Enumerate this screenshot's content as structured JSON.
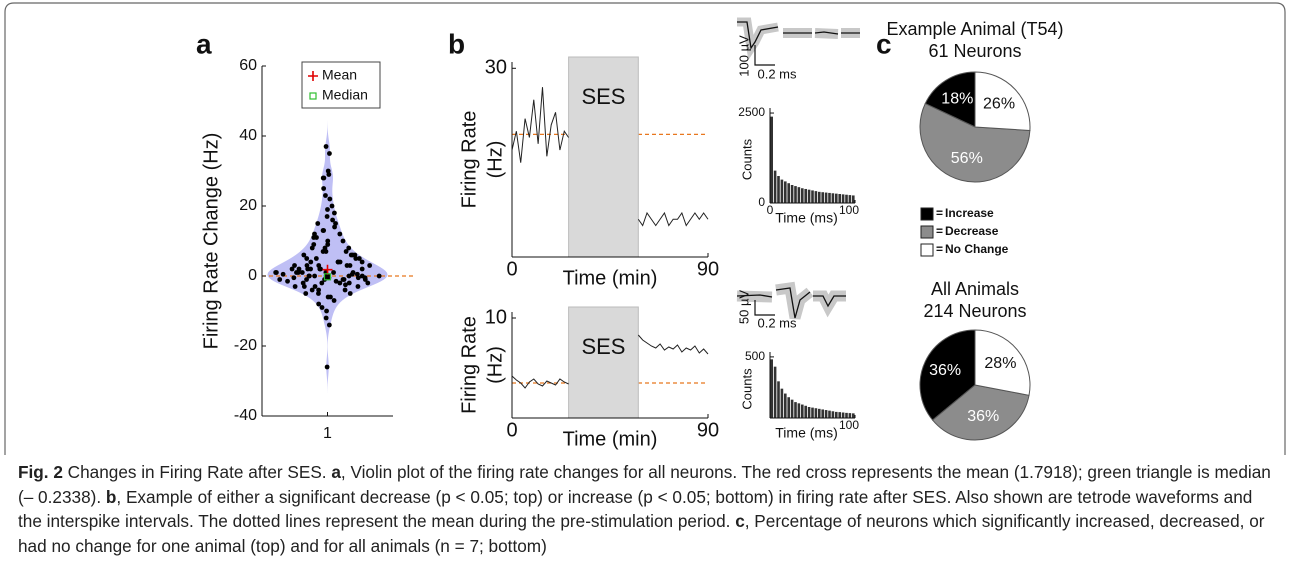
{
  "panel_labels": [
    "a",
    "b",
    "c"
  ],
  "chart_data": [
    {
      "type": "violin",
      "ylabel": "Firing Rate Change (Hz)",
      "categories": [
        "1"
      ],
      "ylim": [
        -40,
        60
      ],
      "yticks": [
        -40,
        -20,
        0,
        20,
        40,
        60
      ],
      "violin_color": "#a9a9f2",
      "reference_line": {
        "value": 0,
        "color": "#e8771e"
      },
      "points": [
        37,
        35,
        30,
        29,
        28,
        28,
        25,
        23,
        22,
        20,
        19,
        18,
        17,
        16,
        15,
        15,
        14,
        13,
        13,
        12,
        12,
        11,
        11,
        10,
        10,
        9,
        9,
        8,
        8,
        8,
        7,
        7,
        7,
        6,
        6,
        6,
        6,
        5,
        5,
        5,
        5,
        4,
        4,
        4,
        4,
        4,
        3,
        3,
        3,
        3,
        3,
        3,
        2,
        2,
        2,
        2,
        2,
        2,
        2,
        1,
        1,
        1,
        1,
        1,
        1,
        1,
        1,
        0.5,
        0.5,
        0.5,
        0,
        0,
        0,
        0,
        0,
        0,
        0,
        0,
        -0.5,
        -0.5,
        -0.5,
        -0.5,
        -1,
        -1,
        -1,
        -1,
        -1,
        -1,
        -1.5,
        -1.5,
        -2,
        -2,
        -2,
        -2,
        -2,
        -2.5,
        -3,
        -3,
        -3,
        -3,
        -4,
        -4,
        -4,
        -5,
        -5,
        -5,
        -6,
        -6,
        -7,
        -8,
        -9,
        -10,
        -12,
        -14,
        -26
      ],
      "series": [
        {
          "name": "Mean",
          "color": "#e00000",
          "values": [
            1.7918
          ]
        },
        {
          "name": "Median",
          "color": "#2fbf2f",
          "values": [
            -0.2338
          ]
        }
      ]
    },
    {
      "type": "line",
      "ylabel": [
        "Firing Rate",
        "(Hz)"
      ],
      "xlabel": "Time (min)",
      "xlim": [
        0,
        90
      ],
      "xticks": [
        0,
        90
      ],
      "ylim": [
        0,
        31
      ],
      "yticks": [
        30
      ],
      "color": "#222222",
      "shade": {
        "x": [
          26,
          58
        ],
        "label": "SES",
        "color": "#d9d9d9"
      },
      "reference_line": {
        "value": 19.5,
        "color": "#e8771e"
      },
      "x": [
        0,
        2,
        4,
        6,
        8,
        10,
        12,
        14,
        16,
        18,
        20,
        22,
        24,
        26,
        28,
        30,
        32,
        34,
        36,
        38,
        40,
        42,
        44,
        46,
        48,
        50,
        52,
        54,
        56,
        58,
        60,
        62,
        64,
        66,
        68,
        70,
        72,
        74,
        76,
        78,
        80,
        82,
        84,
        86,
        88,
        90
      ],
      "values": [
        17,
        20,
        15,
        22,
        19,
        25,
        18,
        27,
        16,
        21,
        23,
        17,
        20,
        19,
        null,
        null,
        null,
        null,
        null,
        null,
        null,
        null,
        null,
        null,
        null,
        null,
        null,
        null,
        null,
        6,
        5,
        7,
        6,
        5,
        6,
        7,
        5,
        6,
        6,
        7,
        5,
        6,
        7,
        6,
        7,
        6
      ]
    },
    {
      "type": "histogram",
      "ylabel": "Counts",
      "xlabel": "Time (ms)",
      "xlim": [
        0,
        100
      ],
      "xticks": [
        0,
        100
      ],
      "ylim": [
        0,
        2640
      ],
      "yticks": [
        0,
        2500
      ],
      "color": "#333333",
      "bins": [
        0,
        4,
        8,
        12,
        16,
        20,
        24,
        28,
        32,
        36,
        40,
        44,
        48,
        52,
        56,
        60,
        64,
        68,
        72,
        76,
        80,
        84,
        88,
        92,
        96,
        100
      ],
      "values": [
        2400,
        900,
        750,
        650,
        600,
        550,
        500,
        470,
        440,
        410,
        390,
        370,
        350,
        330,
        310,
        300,
        290,
        280,
        270,
        260,
        250,
        240,
        230,
        220,
        210
      ]
    },
    {
      "type": "line",
      "ylabel": [
        "Firing Rate",
        "(Hz)"
      ],
      "xlabel": "Time (min)",
      "xlim": [
        0,
        90
      ],
      "xticks": [
        0,
        90
      ],
      "ylim": [
        0,
        10.6
      ],
      "yticks": [
        10
      ],
      "color": "#222222",
      "shade": {
        "x": [
          26,
          58
        ],
        "label": "SES",
        "color": "#d9d9d9"
      },
      "reference_line": {
        "value": 3.5,
        "color": "#e8771e"
      },
      "x": [
        0,
        2,
        4,
        6,
        8,
        10,
        12,
        14,
        16,
        18,
        20,
        22,
        24,
        26,
        28,
        30,
        32,
        34,
        36,
        38,
        40,
        42,
        44,
        46,
        48,
        50,
        52,
        54,
        56,
        58,
        60,
        62,
        64,
        66,
        68,
        70,
        72,
        74,
        76,
        78,
        80,
        82,
        84,
        86,
        88,
        90
      ],
      "values": [
        4.2,
        3.8,
        3.5,
        3.0,
        3.6,
        3.9,
        3.4,
        3.2,
        3.7,
        3.5,
        3.3,
        3.9,
        3.6,
        3.4,
        null,
        null,
        null,
        null,
        null,
        null,
        null,
        null,
        null,
        null,
        null,
        null,
        null,
        null,
        null,
        8.3,
        7.8,
        7.5,
        7.2,
        7.0,
        7.4,
        6.8,
        7.1,
        6.9,
        7.3,
        6.6,
        7.0,
        6.8,
        7.2,
        6.5,
        6.9,
        6.4
      ]
    },
    {
      "type": "histogram",
      "ylabel": "Counts",
      "xlabel": "Time (ms)",
      "xlim": [
        0,
        100
      ],
      "xticks": [
        100
      ],
      "ylim": [
        0,
        540
      ],
      "yticks": [
        500
      ],
      "color": "#333333",
      "bins": [
        0,
        4,
        8,
        12,
        16,
        20,
        24,
        28,
        32,
        36,
        40,
        44,
        48,
        52,
        56,
        60,
        64,
        68,
        72,
        76,
        80,
        84,
        88,
        92,
        96,
        100
      ],
      "values": [
        480,
        420,
        300,
        240,
        200,
        170,
        150,
        130,
        120,
        110,
        100,
        90,
        85,
        80,
        75,
        70,
        65,
        60,
        55,
        50,
        48,
        45,
        42,
        40,
        38
      ]
    },
    {
      "type": "pie",
      "title": "Example Animal (T54)",
      "subtitle": "61 Neurons",
      "categories": [
        "Increase",
        "Decrease",
        "No Change"
      ],
      "colors": [
        "#000000",
        "#8c8c8c",
        "#ffffff"
      ],
      "values": [
        18,
        56,
        26
      ],
      "value_labels": [
        "18%",
        "56%",
        "26%"
      ]
    },
    {
      "type": "pie",
      "title": "All Animals",
      "subtitle": "214 Neurons",
      "categories": [
        "Increase",
        "Decrease",
        "No Change"
      ],
      "colors": [
        "#000000",
        "#8c8c8c",
        "#ffffff"
      ],
      "values": [
        36,
        36,
        28
      ],
      "value_labels": [
        "36%",
        "36%",
        "28%"
      ]
    }
  ],
  "waveforms": [
    {
      "amplitude_label": "100 µV",
      "time_label": "0.2 ms"
    },
    {
      "amplitude_label": "50 µV",
      "time_label": "0.2 ms"
    }
  ],
  "pie_legend": {
    "prefix": "="
  },
  "caption": [
    "Fig. 2",
    " Changes in Firing Rate after SES. ",
    "a",
    ", Violin plot of the firing rate changes for all neurons. The red cross represents the mean (1.7918); green triangle is median (– 0.2338). ",
    "b",
    ", Example of either a significant decrease (p < 0.05; top) or increase (p < 0.05; bottom) in firing rate after SES. Also shown are tetrode waveforms and the interspike intervals. The dotted lines represent the mean during the pre-stimulation period. ",
    "c",
    ", Percentage of neurons which significantly increased, decreased, or had no change for one animal (top) and for all animals (n = 7; bottom)"
  ]
}
